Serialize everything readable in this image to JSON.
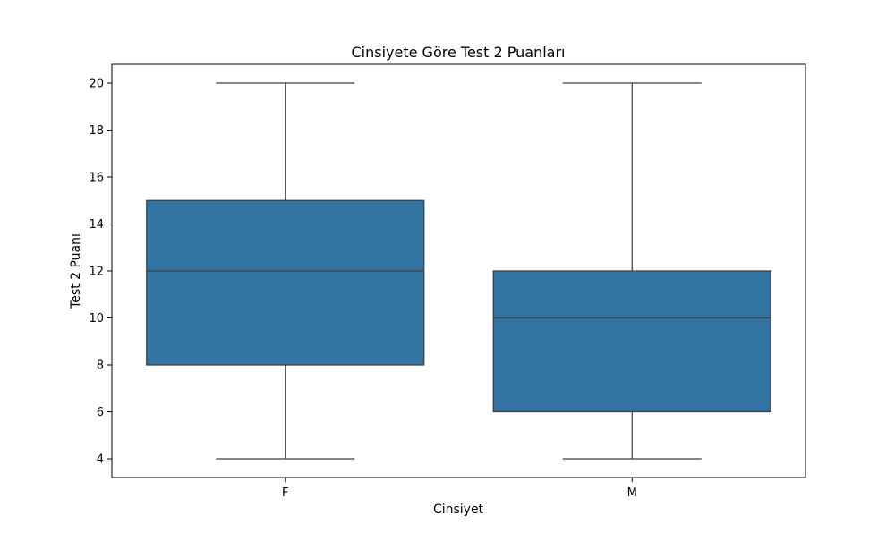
{
  "chart_data": {
    "type": "box",
    "title": "Cinsiyete Göre Test 2 Puanları",
    "xlabel": "Cinsiyet",
    "ylabel": "Test 2 Puanı",
    "categories": [
      "F",
      "M"
    ],
    "boxes": [
      {
        "category": "F",
        "min": 4,
        "q1": 8,
        "median": 12,
        "q3": 15,
        "max": 20
      },
      {
        "category": "M",
        "min": 4,
        "q1": 6,
        "median": 10,
        "q3": 12,
        "max": 20
      }
    ],
    "yticks": [
      4,
      6,
      8,
      10,
      12,
      14,
      16,
      18,
      20
    ],
    "ylim": [
      3.2,
      20.8
    ],
    "grid": false,
    "legend": "none",
    "colors": {
      "box_fill": "#3274a1",
      "line": "#3f3f3f",
      "axis": "#000000"
    }
  }
}
